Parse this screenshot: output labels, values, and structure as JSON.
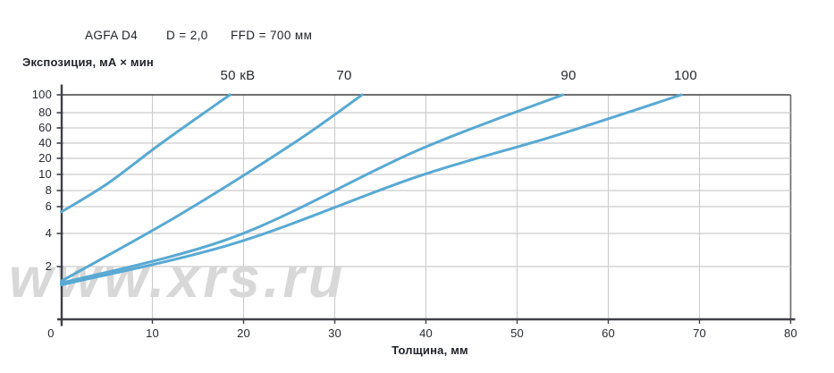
{
  "header": {
    "film": "AGFA D4",
    "density": "D = 2,0",
    "ffd": "FFD = 700 мм"
  },
  "watermark": "www.xrs.ru",
  "chart_data": {
    "type": "line",
    "title": "",
    "x_axis": {
      "label": "Толщина, мм",
      "ticks": [
        0,
        10,
        20,
        30,
        40,
        50,
        60,
        70,
        80
      ],
      "range": [
        0,
        80
      ]
    },
    "y_axis": {
      "label": "Экспозиция, мА × мин",
      "ticks": [
        100,
        80,
        60,
        40,
        20,
        10,
        8,
        6,
        4,
        2
      ],
      "range": [
        1,
        100
      ],
      "scale": "compressed-logarithmic"
    },
    "grid": true,
    "line_color": "#58a9d3",
    "legend_position": "labels-above-curve-exits",
    "series": [
      {
        "label": "50 кВ",
        "kv": 50,
        "points": [
          [
            0,
            5.6
          ],
          [
            5,
            8.8
          ],
          [
            11,
            40
          ],
          [
            18.5,
            100
          ]
        ]
      },
      {
        "label": "70",
        "kv": 70,
        "points": [
          [
            0,
            1.6
          ],
          [
            13,
            5.4
          ],
          [
            25.5,
            40
          ],
          [
            33,
            100
          ]
        ]
      },
      {
        "label": "90",
        "kv": 90,
        "points": [
          [
            0,
            1.55
          ],
          [
            19,
            3.8
          ],
          [
            39,
            30
          ],
          [
            55,
            100
          ]
        ]
      },
      {
        "label": "100",
        "kv": 100,
        "points": [
          [
            0,
            1.5
          ],
          [
            19,
            3.4
          ],
          [
            39,
            9.7
          ],
          [
            54,
            49
          ],
          [
            68,
            100
          ]
        ]
      }
    ]
  }
}
